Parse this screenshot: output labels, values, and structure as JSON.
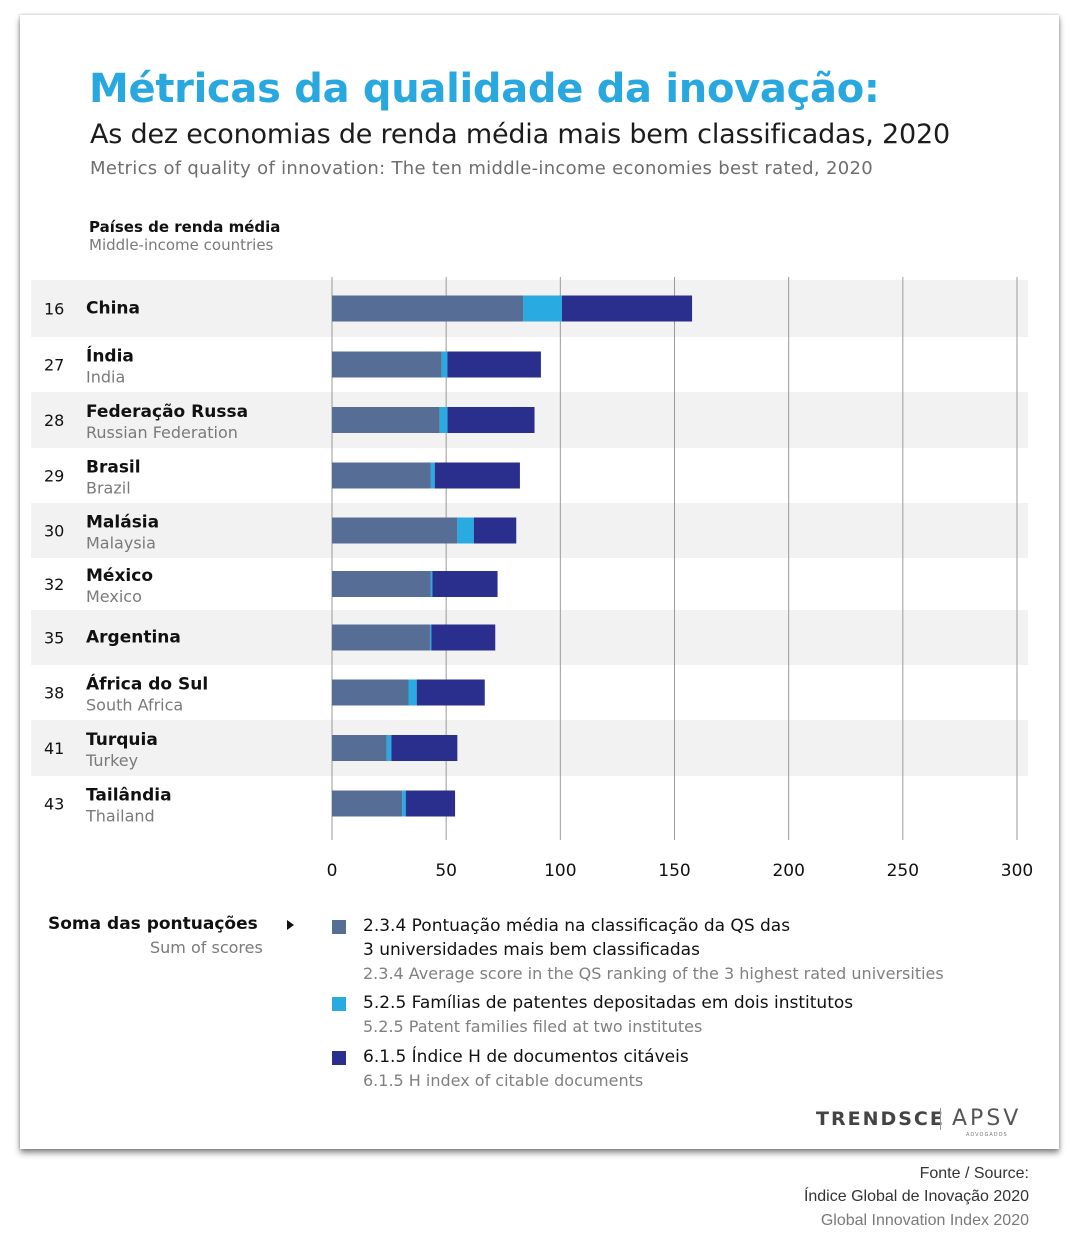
{
  "title": "Métricas da qualidade da inovação:",
  "subtitle": "As dez economias de renda média mais bem classificadas, 2020",
  "subtitle_en": "Metrics of quality of innovation: The ten middle-income economies best rated, 2020",
  "group_label": "Países de renda média",
  "group_label_en": "Middle-income countries",
  "colors": {
    "qs": "#566d95",
    "patents": "#29abe2",
    "hindex": "#2a2e8c",
    "band": "#f2f2f2",
    "grid": "#9a9a9a"
  },
  "chart_data": {
    "type": "bar",
    "orientation": "horizontal",
    "stacked": true,
    "xlim": [
      0,
      300
    ],
    "xticks": [
      "0",
      "50",
      "100",
      "150",
      "200",
      "250",
      "300"
    ],
    "rows": [
      {
        "rank": "16",
        "name": "China",
        "name_en": "",
        "values": [
          83.8,
          16.9,
          57.0
        ]
      },
      {
        "rank": "27",
        "name": "Índia",
        "name_en": "India",
        "values": [
          48.0,
          2.5,
          41.0
        ]
      },
      {
        "rank": "28",
        "name": "Federação Russa",
        "name_en": "Russian Federation",
        "values": [
          47.2,
          3.4,
          38.1
        ]
      },
      {
        "rank": "29",
        "name": "Brasil",
        "name_en": "Brazil",
        "values": [
          43.3,
          1.7,
          37.3
        ]
      },
      {
        "rank": "30",
        "name": "Malásia",
        "name_en": "Malaysia",
        "values": [
          54.9,
          7.2,
          18.6
        ]
      },
      {
        "rank": "32",
        "name": "México",
        "name_en": "Mexico",
        "values": [
          43.3,
          0.7,
          28.5
        ]
      },
      {
        "rank": "35",
        "name": "Argentina",
        "name_en": "",
        "values": [
          42.9,
          0.6,
          28.0
        ]
      },
      {
        "rank": "38",
        "name": "África do Sul",
        "name_en": "South Africa",
        "values": [
          33.5,
          3.6,
          29.8
        ]
      },
      {
        "rank": "41",
        "name": "Turquia",
        "name_en": "Turkey",
        "values": [
          24.0,
          2.0,
          28.9
        ]
      },
      {
        "rank": "43",
        "name": "Tailândia",
        "name_en": "Thailand",
        "values": [
          30.7,
          1.6,
          21.6
        ]
      }
    ],
    "series": [
      {
        "name": "2.3.4 Pontuação média na classificação da QS das 3 universidades mais bem classificadas"
      },
      {
        "name": "5.2.5 Famílias de patentes depositadas em dois institutos"
      },
      {
        "name": "6.1.5 Índice H de documentos citáveis"
      }
    ]
  },
  "sum": {
    "label": "Soma das pontuações",
    "label_en": "Sum of scores"
  },
  "legend": [
    {
      "line1": "2.3.4 Pontuação média na classificação da QS das",
      "line2": "3 universidades mais bem classificadas",
      "en": "2.3.4 Average score in the QS ranking of the 3 highest rated universities"
    },
    {
      "line1": "5.2.5 Famílias de patentes depositadas em dois institutos",
      "line2": "",
      "en": "5.2.5 Patent families filed at two institutes"
    },
    {
      "line1": "6.1.5 Índice H de documentos citáveis",
      "line2": "",
      "en": "6.1.5 H index of citable documents"
    }
  ],
  "brand": {
    "trendsce": "TRENDSCE",
    "apsv": "APSV",
    "apsv_sub": "ADVOGADOS"
  },
  "source": {
    "line1": "Fonte / Source:",
    "line2": "Índice Global de Inovação 2020",
    "line3": "Global Innovation Index 2020"
  }
}
